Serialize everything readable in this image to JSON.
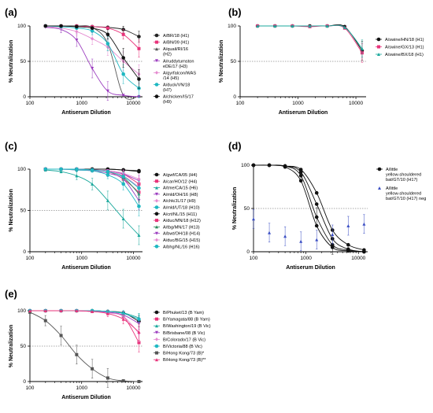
{
  "figure": {
    "title": ""
  },
  "chart_data": [
    {
      "panel": "(a)",
      "type": "line",
      "xlabel": "Antiserum Dilution",
      "ylabel": "% Neutralization",
      "xscale": "log",
      "xlim": [
        100,
        15000
      ],
      "ylim": [
        0,
        100
      ],
      "xticks": [
        "100",
        "1000",
        "10000"
      ],
      "yticks": [
        "0",
        "50",
        "100"
      ],
      "reference_line": 50,
      "x": [
        200,
        400,
        800,
        1600,
        3200,
        6400,
        12800
      ],
      "series": [
        {
          "name": "A/BR/18 (H1)",
          "color": "#222222",
          "marker": "circle",
          "values": [
            100,
            100,
            100,
            99,
            98,
            95,
            85
          ]
        },
        {
          "name": "A/BN/09 (H1)",
          "color": "#e8337a",
          "marker": "square",
          "values": [
            100,
            100,
            100,
            99,
            97,
            88,
            68
          ]
        },
        {
          "name": "A/quail/RI/16 (H2)",
          "color": "#555555",
          "marker": "triangle",
          "values": [
            100,
            100,
            100,
            98,
            75,
            2,
            1
          ]
        },
        {
          "name": "A/ruddyturnston eDE/17 (H3)",
          "color": "#9b3dbf",
          "marker": "triangle-down",
          "values": [
            98,
            95,
            80,
            40,
            8,
            2,
            0
          ]
        },
        {
          "name": "A/gyrfalcon/WAS /14 (H5)",
          "color": "#e58ad0",
          "marker": "diamond",
          "values": [
            99,
            97,
            92,
            82,
            70,
            50,
            32
          ]
        },
        {
          "name": "A/duck/VN/18 (H7)",
          "color": "#1fb8c2",
          "marker": "circle",
          "values": [
            100,
            99,
            97,
            93,
            75,
            32,
            12
          ]
        },
        {
          "name": "A/chicken/IS/17 (H9)",
          "color": "#111111",
          "marker": "circle-filled",
          "values": [
            100,
            100,
            99,
            97,
            88,
            55,
            25
          ]
        }
      ]
    },
    {
      "panel": "(b)",
      "type": "line",
      "xlabel": "Antiserum Dilution",
      "ylabel": "% Neutralization",
      "xscale": "log",
      "xlim": [
        100,
        15000
      ],
      "ylim": [
        0,
        100
      ],
      "xticks": [
        "100",
        "1000",
        "10000"
      ],
      "yticks": [
        "0",
        "50",
        "100"
      ],
      "reference_line": 50,
      "x": [
        200,
        400,
        800,
        1600,
        3200,
        6400,
        12800
      ],
      "series": [
        {
          "name": "A/swine/HN/18 (H1)",
          "color": "#111111",
          "marker": "circle",
          "values": [
            100,
            100,
            100,
            100,
            100,
            99,
            65
          ]
        },
        {
          "name": "A/swine/GX/13 (H1)",
          "color": "#e8337a",
          "marker": "square",
          "values": [
            100,
            100,
            100,
            99,
            100,
            97,
            62
          ]
        },
        {
          "name": "A/swine/BX/18 (H1)",
          "color": "#1aa89c",
          "marker": "triangle",
          "values": [
            100,
            100,
            100,
            100,
            100,
            98,
            68
          ]
        }
      ]
    },
    {
      "panel": "(c)",
      "type": "line",
      "xlabel": "Antiserum Dilution",
      "ylabel": "% Neutralization",
      "xscale": "log",
      "xlim": [
        100,
        15000
      ],
      "ylim": [
        0,
        100
      ],
      "xticks": [
        "100",
        "1000",
        "10000"
      ],
      "yticks": [
        "0",
        "50",
        "100"
      ],
      "reference_line": 50,
      "x": [
        200,
        400,
        800,
        1600,
        3200,
        6400,
        12800
      ],
      "series": [
        {
          "name": "A/gwf/CA/05 (H4)",
          "color": "#111111",
          "marker": "circle",
          "values": [
            100,
            100,
            100,
            100,
            100,
            99,
            98
          ]
        },
        {
          "name": "A/car/HO/12 (H4)",
          "color": "#e8337a",
          "marker": "square",
          "values": [
            100,
            100,
            100,
            99,
            97,
            88,
            72
          ]
        },
        {
          "name": "A/tme/CA/15 (H6)",
          "color": "#1aa89c",
          "marker": "triangle",
          "values": [
            99,
            97,
            92,
            82,
            62,
            40,
            20
          ]
        },
        {
          "name": "A/mld/OH/16 (H8)",
          "color": "#9b3dbf",
          "marker": "triangle-down",
          "values": [
            100,
            100,
            99,
            98,
            95,
            88,
            62
          ]
        },
        {
          "name": "A/chk/JL/17 (H9)",
          "color": "#e58ad0",
          "marker": "diamond",
          "values": [
            100,
            100,
            100,
            99,
            98,
            92,
            78
          ]
        },
        {
          "name": "A/mld/UT/18 (H10)",
          "color": "#1fb8c2",
          "marker": "circle",
          "values": [
            100,
            100,
            99,
            98,
            93,
            82,
            55
          ]
        },
        {
          "name": "A/crt/NL/15 (H11)",
          "color": "#111111",
          "marker": "circle-filled",
          "values": [
            100,
            100,
            100,
            100,
            100,
            99,
            97
          ]
        },
        {
          "name": "A/duc/MN/18 (H12)",
          "color": "#e8337a",
          "marker": "square-filled",
          "values": [
            100,
            100,
            100,
            99,
            98,
            94,
            82
          ]
        },
        {
          "name": "A/tbg/MN/17 (H13)",
          "color": "#2a8a5a",
          "marker": "triangle",
          "values": [
            100,
            100,
            100,
            99,
            97,
            90,
            70
          ]
        },
        {
          "name": "A/bwt/OH/18 (H14)",
          "color": "#9b3dbf",
          "marker": "triangle-down",
          "values": [
            100,
            100,
            100,
            99,
            98,
            94,
            86
          ]
        },
        {
          "name": "A/duc/BG/15 (H15)",
          "color": "#e58ad0",
          "marker": "diamond",
          "values": [
            100,
            100,
            100,
            99,
            98,
            95,
            88
          ]
        },
        {
          "name": "A/bhg/NL/16 (H16)",
          "color": "#1fb8c2",
          "marker": "circle",
          "values": [
            100,
            100,
            100,
            99,
            97,
            91,
            77
          ]
        }
      ]
    },
    {
      "panel": "(d)",
      "type": "line",
      "xlabel": "Antiserum Dilution",
      "ylabel": "% Neutralization",
      "xscale": "log",
      "xlim": [
        100,
        15000
      ],
      "ylim": [
        0,
        100
      ],
      "xticks": [
        "100",
        "1000",
        "10000"
      ],
      "yticks": [
        "0",
        "50",
        "100"
      ],
      "reference_line": 50,
      "x": [
        100,
        200,
        400,
        800,
        1600,
        3200,
        6400,
        12800
      ],
      "series": [
        {
          "name": "A/little yellow-shouldered bat/GT/10 (H17)",
          "color": "#111111",
          "marker": "circle-filled",
          "replicates": [
            [
              100,
              100,
              99,
              88,
              40,
              8,
              2,
              0
            ],
            [
              100,
              100,
              98,
              82,
              30,
              5,
              1,
              0
            ],
            [
              100,
              100,
              99,
              92,
              55,
              15,
              3,
              0
            ],
            [
              100,
              100,
              99,
              95,
              68,
              25,
              8,
              2
            ]
          ]
        },
        {
          "name": "A/little yellow-shouldered bat/GT/10 (H17) neg",
          "color": "#3b4fc4",
          "marker": "triangle-filled",
          "values": [
            38,
            22,
            18,
            12,
            14,
            20,
            30,
            32
          ]
        }
      ]
    },
    {
      "panel": "(e)",
      "type": "line",
      "xlabel": "Antiserum Dilution",
      "ylabel": "% Neutralization",
      "xscale": "log",
      "xlim": [
        100,
        15000
      ],
      "ylim": [
        0,
        100
      ],
      "xticks": [
        "100",
        "1000",
        "10000"
      ],
      "yticks": [
        "0",
        "50",
        "100"
      ],
      "reference_line": 50,
      "x": [
        100,
        200,
        400,
        800,
        1600,
        3200,
        6400,
        12800
      ],
      "series": [
        {
          "name": "B/Phuket/13 (B Yam)",
          "color": "#111111",
          "marker": "circle",
          "values": [
            100,
            100,
            100,
            100,
            100,
            99,
            97,
            85
          ]
        },
        {
          "name": "B/Yamagata/88 (B Yam)",
          "color": "#e8337a",
          "marker": "square",
          "values": [
            100,
            100,
            100,
            100,
            99,
            97,
            92,
            55
          ]
        },
        {
          "name": "B/Washington/19 (B Vic)",
          "color": "#1aa89c",
          "marker": "triangle",
          "values": [
            100,
            100,
            100,
            100,
            100,
            99,
            97,
            90
          ]
        },
        {
          "name": "B/Brisbane/08 (B Vic)",
          "color": "#9b3dbf",
          "marker": "triangle-down",
          "values": [
            100,
            100,
            100,
            100,
            99,
            98,
            94,
            82
          ]
        },
        {
          "name": "B/Colorado/17 (B Vic)",
          "color": "#e58ad0",
          "marker": "diamond",
          "values": [
            100,
            100,
            100,
            100,
            99,
            97,
            92,
            68
          ]
        },
        {
          "name": "B/Victoria/88 (B Vic)",
          "color": "#1fb8c2",
          "marker": "circle",
          "values": [
            100,
            100,
            100,
            100,
            100,
            99,
            96,
            88
          ]
        },
        {
          "name": "B/Hong Kong/73 (B)*",
          "color": "#555555",
          "marker": "square-filled",
          "values": [
            98,
            86,
            65,
            38,
            18,
            5,
            1,
            0
          ]
        },
        {
          "name": "B/Hong Kong/73 (B)**",
          "color": "#e8337a",
          "marker": "triangle-filled",
          "values": [
            100,
            100,
            100,
            100,
            99,
            96,
            88,
            70
          ]
        }
      ]
    }
  ]
}
